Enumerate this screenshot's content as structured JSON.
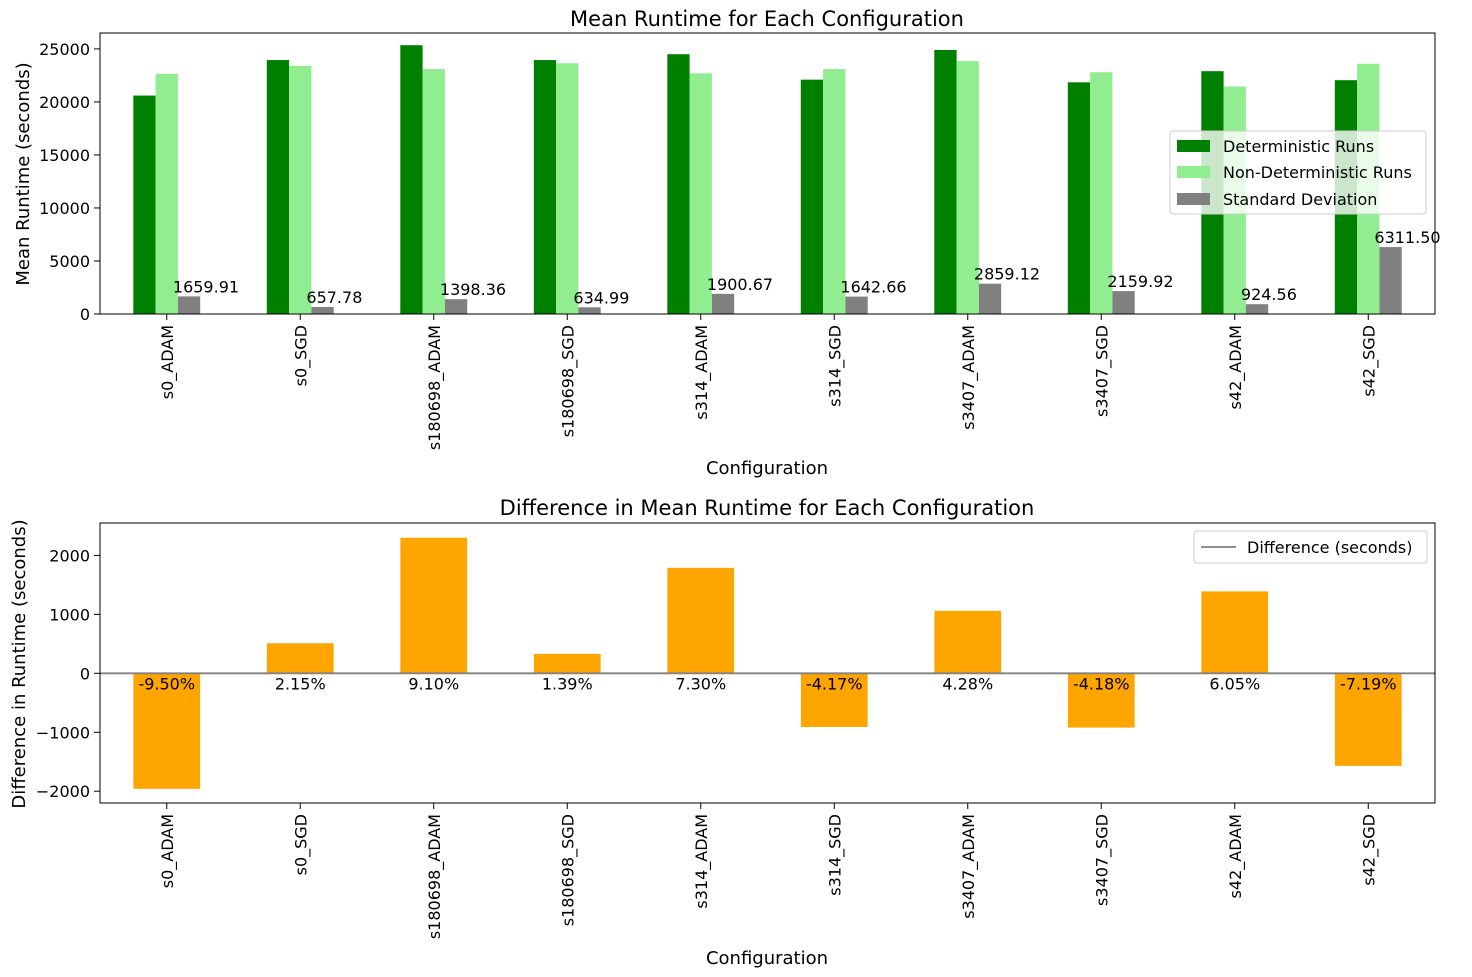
{
  "colors": {
    "deterministic": "#008000",
    "non_deterministic": "#90ee90",
    "std_dev": "#808080",
    "difference_bar": "#ffa500",
    "zero_line": "#808080"
  },
  "chart_data": [
    {
      "type": "bar",
      "title": "Mean Runtime for Each Configuration",
      "xlabel": "Configuration",
      "ylabel": "Mean Runtime (seconds)",
      "ylim": [
        0,
        26500
      ],
      "yticks": [
        0,
        5000,
        10000,
        15000,
        20000,
        25000
      ],
      "grid": false,
      "legend_position": "center-right",
      "categories": [
        "s0_ADAM",
        "s0_SGD",
        "s180698_ADAM",
        "s180698_SGD",
        "s314_ADAM",
        "s314_SGD",
        "s3407_ADAM",
        "s3407_SGD",
        "s42_ADAM",
        "s42_SGD"
      ],
      "series": [
        {
          "name": "Deterministic Runs",
          "color_key": "deterministic",
          "values": [
            20600,
            23950,
            25350,
            23950,
            24500,
            22100,
            24900,
            21850,
            22900,
            22050
          ]
        },
        {
          "name": "Non-Deterministic Runs",
          "color_key": "non_deterministic",
          "values": [
            22650,
            23400,
            23100,
            23650,
            22700,
            23100,
            23850,
            22800,
            21450,
            23600
          ]
        },
        {
          "name": "Standard Deviation",
          "color_key": "std_dev",
          "values": [
            1659.91,
            657.78,
            1398.36,
            634.99,
            1900.67,
            1642.66,
            2859.12,
            2159.92,
            924.56,
            6311.5
          ]
        }
      ],
      "annotations": [
        "1659.91",
        "657.78",
        "1398.36",
        "634.99",
        "1900.67",
        "1642.66",
        "2859.12",
        "2159.92",
        "924.56",
        "6311.50"
      ]
    },
    {
      "type": "bar",
      "title": "Difference in Mean Runtime for Each Configuration",
      "xlabel": "Configuration",
      "ylabel": "Difference in Runtime (seconds)",
      "ylim": [
        -2200,
        2550
      ],
      "yticks": [
        -2000,
        -1000,
        0,
        1000,
        2000
      ],
      "grid": false,
      "legend_position": "top-right",
      "legend": [
        "Difference (seconds)"
      ],
      "categories": [
        "s0_ADAM",
        "s0_SGD",
        "s180698_ADAM",
        "s180698_SGD",
        "s314_ADAM",
        "s314_SGD",
        "s3407_ADAM",
        "s3407_SGD",
        "s42_ADAM",
        "s42_SGD"
      ],
      "values": [
        -1960,
        510,
        2300,
        330,
        1790,
        -910,
        1060,
        -920,
        1390,
        -1570
      ],
      "annotations": [
        "-9.50%",
        "2.15%",
        "9.10%",
        "1.39%",
        "7.30%",
        "-4.17%",
        "4.28%",
        "-4.18%",
        "6.05%",
        "-7.19%"
      ]
    }
  ]
}
